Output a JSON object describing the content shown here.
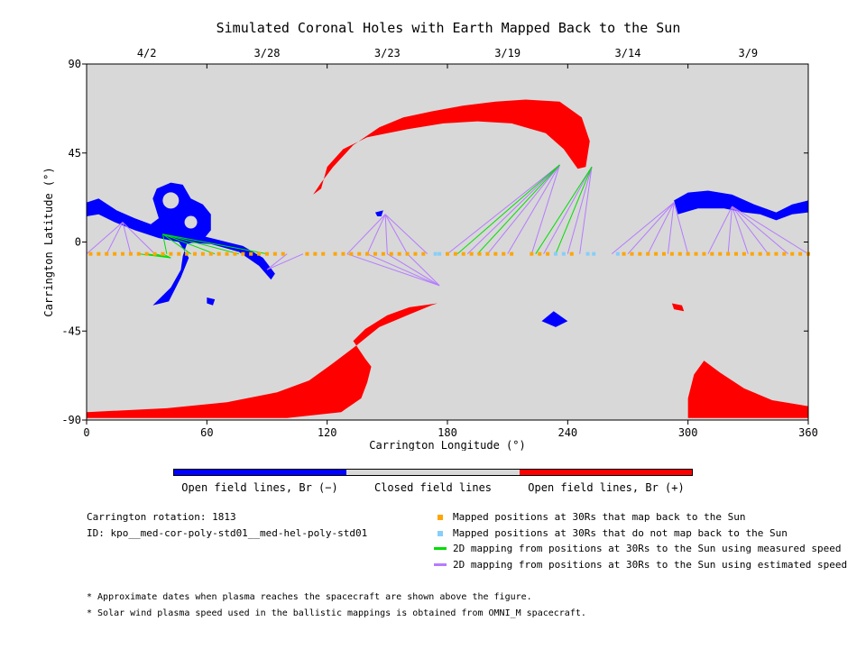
{
  "title": "Simulated Coronal Holes with Earth Mapped Back to the Sun",
  "chart_data": {
    "type": "map",
    "xlabel": "Carrington Longitude (°)",
    "ylabel": "Carrington Latitude (°)",
    "xlim": [
      0,
      360
    ],
    "ylim": [
      -90,
      90
    ],
    "x_ticks": [
      "0",
      "60",
      "120",
      "180",
      "240",
      "300",
      "360"
    ],
    "y_ticks": [
      "90",
      "45",
      "0",
      "-45",
      "-90"
    ],
    "top_axis_dates": [
      "4/2",
      "3/28",
      "3/23",
      "3/19",
      "3/14",
      "3/9"
    ],
    "background_color": "#d8d8d8",
    "colors": {
      "negative": "#0000ff",
      "closed": "#d8d8d8",
      "positive": "#ff0000",
      "mapped": "#ffa500",
      "not_mapped": "#87cefa",
      "measured_line": "#00dd00",
      "estimated_line": "#b57bff"
    },
    "coronal_holes": [
      {
        "polarity": "positive",
        "region": "northern arc",
        "lon_range": [
          113,
          250
        ],
        "lat_range": [
          22,
          72
        ]
      },
      {
        "polarity": "positive",
        "region": "southern band and arc",
        "lon_range": [
          0,
          175
        ],
        "lat_range": [
          -89,
          -31
        ]
      },
      {
        "polarity": "positive",
        "region": "southern patch",
        "lon_range": [
          300,
          360
        ],
        "lat_range": [
          -89,
          -60
        ]
      },
      {
        "polarity": "positive",
        "region": "small patch",
        "lon_range": [
          292,
          298
        ],
        "lat_range": [
          -34,
          -31
        ]
      },
      {
        "polarity": "negative",
        "region": "western cluster",
        "lon_range": [
          0,
          94
        ],
        "lat_range": [
          -32,
          31
        ]
      },
      {
        "polarity": "negative",
        "region": "small patch",
        "lon_range": [
          144,
          148
        ],
        "lat_range": [
          13,
          16
        ]
      },
      {
        "polarity": "negative",
        "region": "small patch",
        "lon_range": [
          227,
          240
        ],
        "lat_range": [
          -43,
          -35
        ]
      },
      {
        "polarity": "negative",
        "region": "eastern arc",
        "lon_range": [
          293,
          360
        ],
        "lat_range": [
          12,
          26
        ]
      }
    ],
    "mapped_latitude": -6,
    "not_mapped_longitudes": [
      174,
      176,
      234,
      238,
      250,
      253,
      265
    ],
    "mapped_longitudes": [
      2,
      6,
      10,
      14,
      18,
      22,
      26,
      30,
      34,
      38,
      42,
      46,
      50,
      54,
      58,
      62,
      66,
      70,
      74,
      78,
      82,
      86,
      90,
      94,
      98,
      110,
      114,
      118,
      124,
      128,
      132,
      136,
      140,
      144,
      148,
      152,
      156,
      160,
      164,
      168,
      180,
      184,
      188,
      192,
      196,
      200,
      204,
      208,
      212,
      222,
      226,
      230,
      242,
      268,
      272,
      276,
      280,
      284,
      288,
      292,
      296,
      300,
      304,
      308,
      312,
      316,
      320,
      324,
      328,
      332,
      336,
      340,
      344,
      348,
      352,
      356,
      360
    ]
  },
  "colorbar": {
    "colors": [
      "#0000ff",
      "#d8d8d8",
      "#ff0000"
    ],
    "labels": [
      "Open field lines, Br (−)",
      "Closed field lines",
      "Open field lines, Br (+)"
    ]
  },
  "info": {
    "rotation": "Carrington rotation: 1813",
    "id": "ID: kpo__med-cor-poly-std01__med-hel-poly-std01"
  },
  "legend": [
    {
      "label": "Mapped positions at 30Rs that map back to the Sun",
      "color": "#ffa500",
      "kind": "square"
    },
    {
      "label": "Mapped positions at 30Rs that do not map back to the Sun",
      "color": "#87cefa",
      "kind": "square"
    },
    {
      "label": "2D mapping from positions at 30Rs to the Sun using measured speed",
      "color": "#00dd00",
      "kind": "line"
    },
    {
      "label": "2D mapping from positions at 30Rs to the Sun using estimated speed",
      "color": "#b57bff",
      "kind": "line"
    }
  ],
  "notes": [
    "* Approximate dates when plasma reaches the spacecraft are shown above the figure.",
    "* Solar wind plasma speed used in the ballistic mappings is obtained from OMNI_M spacecraft."
  ]
}
